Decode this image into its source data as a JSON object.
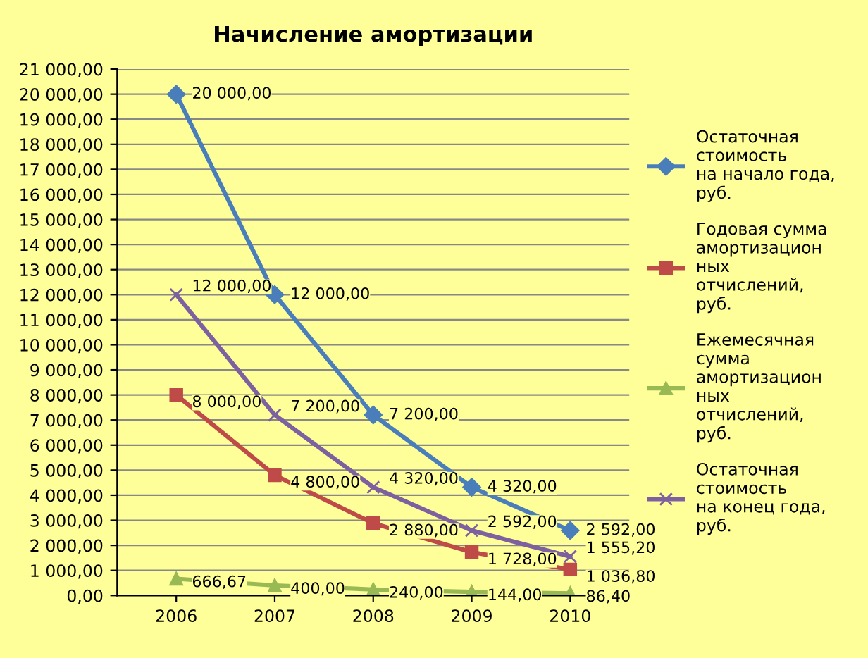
{
  "chart_data": {
    "type": "line",
    "title": "Начисление амортизации",
    "categories": [
      "2006",
      "2007",
      "2008",
      "2009",
      "2010"
    ],
    "series": [
      {
        "name": "Остаточная\nстоимость\nна начало года,\nруб.",
        "color": "#4a7ebb",
        "marker": "diamond",
        "values": [
          20000,
          12000,
          7200,
          4320,
          2592
        ],
        "value_labels": [
          "20 000,00",
          "12 000,00",
          "7 200,00",
          "4 320,00",
          "2 592,00"
        ]
      },
      {
        "name": "Годовая сумма\nамортизацион\nных\nотчислений,\nруб.",
        "color": "#be4b48",
        "marker": "square",
        "values": [
          8000,
          4800,
          2880,
          1728,
          1036.8
        ],
        "value_labels": [
          "8 000,00",
          "4 800,00",
          "2 880,00",
          "1 728,00",
          "1 036,80"
        ]
      },
      {
        "name": "Ежемесячная\nсумма\nамортизацион\nных\nотчислений,\nруб.",
        "color": "#98b954",
        "marker": "triangle",
        "values": [
          666.67,
          400,
          240,
          144,
          86.4
        ],
        "value_labels": [
          "666,67",
          "400,00",
          "240,00",
          "144,00",
          "86,40"
        ]
      },
      {
        "name": "Остаточная\nстоимость\nна конец года,\nруб.",
        "color": "#7d60a0",
        "marker": "cross",
        "values": [
          12000,
          7200,
          4320,
          2592,
          1555.2
        ],
        "value_labels": [
          "12 000,00",
          "7 200,00",
          "4 320,00",
          "2 592,00",
          "1 555,20"
        ]
      }
    ],
    "ylim": [
      0,
      21000
    ],
    "yticks": [
      {
        "value": 0,
        "label": "0,00"
      },
      {
        "value": 1000,
        "label": "1 000,00"
      },
      {
        "value": 2000,
        "label": "2 000,00"
      },
      {
        "value": 3000,
        "label": "3 000,00"
      },
      {
        "value": 4000,
        "label": "4 000,00"
      },
      {
        "value": 5000,
        "label": "5 000,00"
      },
      {
        "value": 6000,
        "label": "6 000,00"
      },
      {
        "value": 7000,
        "label": "7 000,00"
      },
      {
        "value": 8000,
        "label": "8 000,00"
      },
      {
        "value": 9000,
        "label": "9 000,00"
      },
      {
        "value": 10000,
        "label": "10 000,00"
      },
      {
        "value": 11000,
        "label": "11 000,00"
      },
      {
        "value": 12000,
        "label": "12 000,00"
      },
      {
        "value": 13000,
        "label": "13 000,00"
      },
      {
        "value": 14000,
        "label": "14 000,00"
      },
      {
        "value": 15000,
        "label": "15 000,00"
      },
      {
        "value": 16000,
        "label": "16 000,00"
      },
      {
        "value": 17000,
        "label": "17 000,00"
      },
      {
        "value": 18000,
        "label": "18 000,00"
      },
      {
        "value": 19000,
        "label": "19 000,00"
      },
      {
        "value": 20000,
        "label": "20 000,00"
      },
      {
        "value": 21000,
        "label": "21 000,00"
      }
    ],
    "grid": "y",
    "legend": "right",
    "line_style": "solid"
  }
}
